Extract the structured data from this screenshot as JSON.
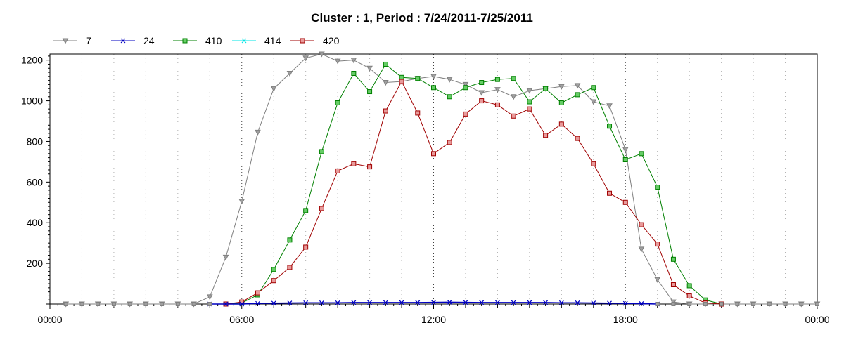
{
  "chart_data": {
    "type": "line",
    "title": "Cluster : 1, Period : 7/24/2011-7/25/2011",
    "xlabel": "",
    "ylabel": "",
    "x_ticks": [
      "00:00",
      "06:00",
      "12:00",
      "18:00",
      "00:00"
    ],
    "x_tick_hours": [
      0,
      6,
      12,
      18,
      24
    ],
    "xlim": [
      0,
      24
    ],
    "y_ticks": [
      200,
      400,
      600,
      800,
      1000,
      1200
    ],
    "ylim": [
      0,
      1230
    ],
    "grid": true,
    "legend_position": "top-left",
    "series": [
      {
        "name": "7",
        "color": "#808080",
        "marker": "triangle-down",
        "x": [
          0.5,
          1,
          1.5,
          2,
          2.5,
          3,
          3.5,
          4,
          4.5,
          5,
          5.5,
          6,
          6.5,
          7,
          7.5,
          8,
          8.5,
          9,
          9.5,
          10,
          10.5,
          11,
          11.5,
          12,
          12.5,
          13,
          13.5,
          14,
          14.5,
          15,
          15.5,
          16,
          16.5,
          17,
          17.5,
          18,
          18.5,
          19,
          19.5,
          20,
          20.5,
          21,
          21.5,
          22,
          22.5,
          23,
          23.5,
          24
        ],
        "y": [
          0,
          0,
          0,
          0,
          0,
          0,
          0,
          0,
          0,
          35,
          230,
          505,
          845,
          1060,
          1135,
          1210,
          1230,
          1195,
          1200,
          1160,
          1090,
          1095,
          1110,
          1120,
          1105,
          1080,
          1040,
          1055,
          1020,
          1050,
          1060,
          1070,
          1075,
          995,
          975,
          760,
          270,
          120,
          10,
          0,
          0,
          0,
          0,
          0,
          0,
          0,
          0,
          0
        ]
      },
      {
        "name": "24",
        "color": "#0000c0",
        "marker": "x",
        "x": [
          5,
          5.5,
          6,
          6.5,
          7,
          7.5,
          8,
          8.5,
          9,
          9.5,
          10,
          10.5,
          11,
          11.5,
          12,
          12.5,
          13,
          13.5,
          14,
          14.5,
          15,
          15.5,
          16,
          16.5,
          17,
          17.5,
          18,
          18.5,
          19
        ],
        "y": [
          0,
          0,
          0,
          3,
          4,
          5,
          6,
          6,
          6,
          7,
          7,
          7,
          7,
          7,
          8,
          9,
          8,
          7,
          7,
          7,
          7,
          7,
          6,
          6,
          5,
          4,
          3,
          2,
          0
        ]
      },
      {
        "name": "410",
        "color": "#008000",
        "marker": "square",
        "marker_fill": "#66cc66",
        "x": [
          5.5,
          6,
          6.5,
          7,
          7.5,
          8,
          8.5,
          9,
          9.5,
          10,
          10.5,
          11,
          11.5,
          12,
          12.5,
          13,
          13.5,
          14,
          14.5,
          15,
          15.5,
          16,
          16.5,
          17,
          17.5,
          18,
          18.5,
          19,
          19.5,
          20,
          20.5,
          21
        ],
        "y": [
          0,
          5,
          45,
          170,
          315,
          460,
          750,
          990,
          1135,
          1045,
          1180,
          1115,
          1110,
          1065,
          1020,
          1065,
          1090,
          1105,
          1110,
          995,
          1060,
          990,
          1030,
          1065,
          875,
          710,
          740,
          575,
          220,
          90,
          20,
          0
        ]
      },
      {
        "name": "414",
        "color": "#00e5e5",
        "marker": "x",
        "x": [],
        "y": []
      },
      {
        "name": "420",
        "color": "#a00000",
        "marker": "square",
        "marker_fill": "#e89a9a",
        "x": [
          5.5,
          6,
          6.5,
          7,
          7.5,
          8,
          8.5,
          9,
          9.5,
          10,
          10.5,
          11,
          11.5,
          12,
          12.5,
          13,
          13.5,
          14,
          14.5,
          15,
          15.5,
          16,
          16.5,
          17,
          17.5,
          18,
          18.5,
          19,
          19.5,
          20,
          20.5,
          21
        ],
        "y": [
          0,
          10,
          55,
          115,
          180,
          280,
          470,
          655,
          690,
          675,
          950,
          1095,
          940,
          740,
          795,
          935,
          1000,
          980,
          925,
          960,
          830,
          885,
          815,
          690,
          545,
          500,
          390,
          295,
          95,
          40,
          5,
          0
        ]
      }
    ],
    "flat_markers_x": [
      0.5,
      1,
      1.5,
      2,
      2.5,
      3,
      3.5,
      4,
      4.5,
      5,
      19,
      19.5,
      20,
      20.5,
      21,
      21.5,
      22,
      22.5,
      23,
      23.5,
      24
    ]
  }
}
